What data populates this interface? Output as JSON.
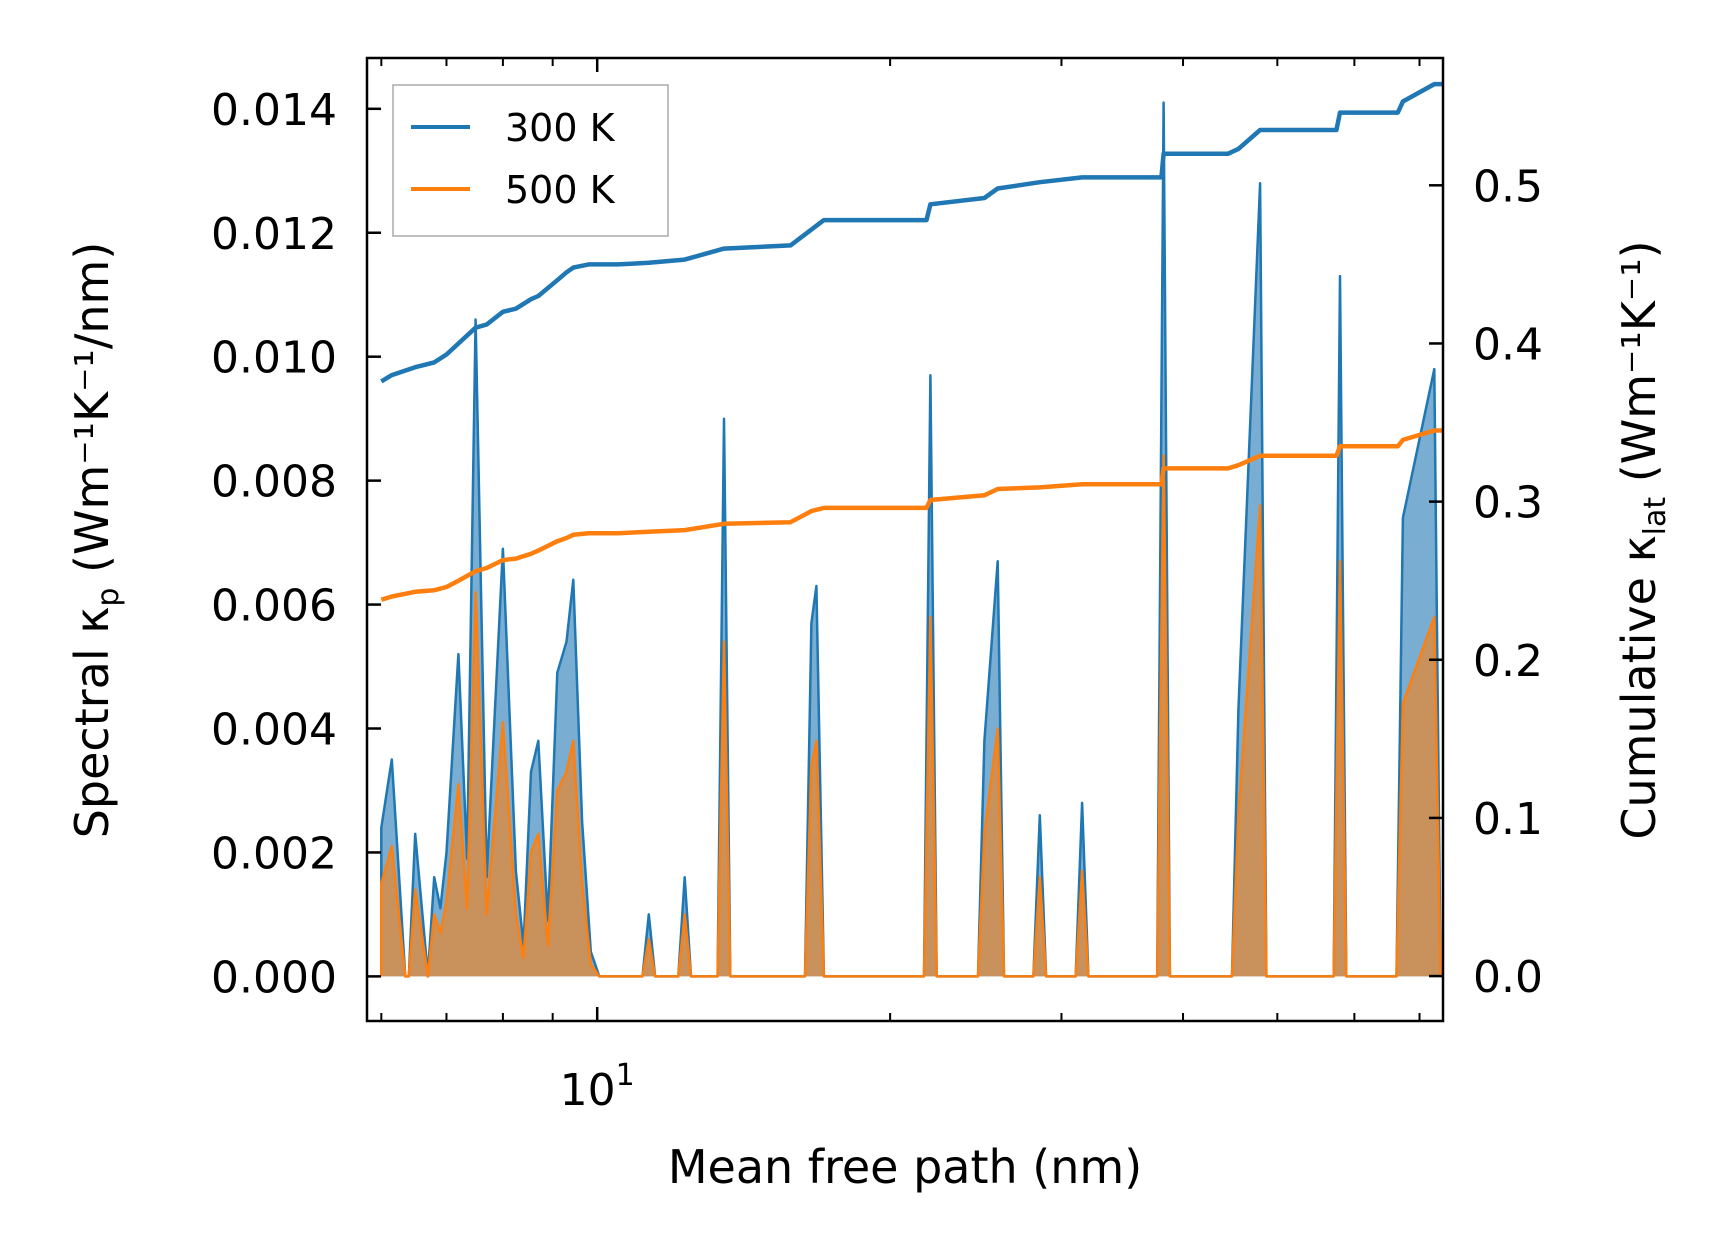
{
  "chart_data": {
    "type": "line",
    "xlabel": "Mean free path (nm)",
    "xscale": "log",
    "xlim": [
      5.8,
      74
    ],
    "x_tick_labels": [
      {
        "value": 10,
        "base": "10",
        "exp": "1"
      }
    ],
    "ylabel_left": {
      "main": "Spectral κ",
      "sub": "p",
      "units": "(Wm⁻¹K⁻¹/nm)"
    },
    "ylim_left": [
      -0.00072,
      0.01482
    ],
    "yticks_left": [
      "0.000",
      "0.002",
      "0.004",
      "0.006",
      "0.008",
      "0.010",
      "0.012",
      "0.014"
    ],
    "ylabel_right": {
      "main": "Cumulative κ",
      "sub": "lat",
      "units": "(Wm⁻¹K⁻¹)"
    },
    "ylim_right": [
      -0.0284,
      0.5805
    ],
    "yticks_right": [
      "0.0",
      "0.1",
      "0.2",
      "0.3",
      "0.4",
      "0.5"
    ],
    "legend": {
      "position": "top-left",
      "entries": [
        "300 K",
        "500 K"
      ]
    },
    "colors": {
      "300 K": "#1f77b4",
      "500 K": "#ff7f0e"
    },
    "spectral": {
      "300 K": [
        {
          "x": 6.0,
          "y": 0.0024
        },
        {
          "x": 6.15,
          "y": 0.0035
        },
        {
          "x": 6.35,
          "y": 0.0,
          "end": true
        },
        {
          "x": 6.5,
          "y": 0.0023
        },
        {
          "x": 6.7,
          "y": 0.0,
          "end": true
        },
        {
          "x": 6.8,
          "y": 0.0016
        },
        {
          "x": 6.9,
          "y": 0.0011
        },
        {
          "x": 7.0,
          "y": 0.002
        },
        {
          "x": 7.2,
          "y": 0.0052
        },
        {
          "x": 7.35,
          "y": 0.0019
        },
        {
          "x": 7.5,
          "y": 0.0106
        },
        {
          "x": 7.7,
          "y": 0.0016
        },
        {
          "x": 8.0,
          "y": 0.0069
        },
        {
          "x": 8.25,
          "y": 0.0017
        },
        {
          "x": 8.4,
          "y": 0.0005
        },
        {
          "x": 8.55,
          "y": 0.0033
        },
        {
          "x": 8.7,
          "y": 0.0038
        },
        {
          "x": 8.9,
          "y": 0.0009
        },
        {
          "x": 9.1,
          "y": 0.0049
        },
        {
          "x": 9.3,
          "y": 0.0054
        },
        {
          "x": 9.45,
          "y": 0.0064
        },
        {
          "x": 9.65,
          "y": 0.0025
        },
        {
          "x": 9.85,
          "y": 0.0004
        },
        {
          "x": 10.05,
          "y": 0.0,
          "end": true
        },
        {
          "x": 11.3,
          "y": 0.001
        },
        {
          "x": 12.3,
          "y": 0.0016
        },
        {
          "x": 13.5,
          "y": 0.009
        },
        {
          "x": 16.6,
          "y": 0.0057
        },
        {
          "x": 16.8,
          "y": 0.0063
        },
        {
          "x": 17.1,
          "y": 0.0,
          "end": true
        },
        {
          "x": 22.0,
          "y": 0.0097
        },
        {
          "x": 25.0,
          "y": 0.0038
        },
        {
          "x": 25.8,
          "y": 0.0067
        },
        {
          "x": 28.5,
          "y": 0.0026
        },
        {
          "x": 31.5,
          "y": 0.0028
        },
        {
          "x": 38.2,
          "y": 0.0141
        },
        {
          "x": 45.6,
          "y": 0.0043
        },
        {
          "x": 48.0,
          "y": 0.0128
        },
        {
          "x": 58.0,
          "y": 0.0113
        },
        {
          "x": 67.3,
          "y": 0.0074
        },
        {
          "x": 72.5,
          "y": 0.0098
        }
      ],
      "500 K": [
        {
          "x": 6.0,
          "y": 0.0015
        },
        {
          "x": 6.15,
          "y": 0.0021
        },
        {
          "x": 6.35,
          "y": 0.0,
          "end": true
        },
        {
          "x": 6.5,
          "y": 0.0014
        },
        {
          "x": 6.7,
          "y": 0.0,
          "end": true
        },
        {
          "x": 6.8,
          "y": 0.001
        },
        {
          "x": 6.9,
          "y": 0.0007
        },
        {
          "x": 7.0,
          "y": 0.0012
        },
        {
          "x": 7.2,
          "y": 0.0031
        },
        {
          "x": 7.35,
          "y": 0.0011
        },
        {
          "x": 7.5,
          "y": 0.0062
        },
        {
          "x": 7.7,
          "y": 0.001
        },
        {
          "x": 8.0,
          "y": 0.0041
        },
        {
          "x": 8.25,
          "y": 0.001
        },
        {
          "x": 8.4,
          "y": 0.0003
        },
        {
          "x": 8.55,
          "y": 0.002
        },
        {
          "x": 8.7,
          "y": 0.0023
        },
        {
          "x": 8.9,
          "y": 0.0005
        },
        {
          "x": 9.1,
          "y": 0.003
        },
        {
          "x": 9.3,
          "y": 0.0033
        },
        {
          "x": 9.45,
          "y": 0.0038
        },
        {
          "x": 9.65,
          "y": 0.0015
        },
        {
          "x": 9.85,
          "y": 0.0002
        },
        {
          "x": 10.05,
          "y": 0.0,
          "end": true
        },
        {
          "x": 11.3,
          "y": 0.0006
        },
        {
          "x": 12.3,
          "y": 0.001
        },
        {
          "x": 13.5,
          "y": 0.0054
        },
        {
          "x": 16.6,
          "y": 0.0034
        },
        {
          "x": 16.8,
          "y": 0.0038
        },
        {
          "x": 17.1,
          "y": 0.0,
          "end": true
        },
        {
          "x": 22.0,
          "y": 0.0058
        },
        {
          "x": 25.0,
          "y": 0.0023
        },
        {
          "x": 25.8,
          "y": 0.004
        },
        {
          "x": 28.5,
          "y": 0.0016
        },
        {
          "x": 31.5,
          "y": 0.0017
        },
        {
          "x": 38.2,
          "y": 0.0084
        },
        {
          "x": 45.6,
          "y": 0.0026
        },
        {
          "x": 48.0,
          "y": 0.0076
        },
        {
          "x": 58.0,
          "y": 0.0067
        },
        {
          "x": 67.3,
          "y": 0.0044
        },
        {
          "x": 72.5,
          "y": 0.0058
        }
      ]
    },
    "cumulative": {
      "300 K": [
        [
          6.0,
          0.376
        ],
        [
          6.15,
          0.38
        ],
        [
          6.5,
          0.385
        ],
        [
          6.8,
          0.388
        ],
        [
          7.0,
          0.393
        ],
        [
          7.2,
          0.4
        ],
        [
          7.5,
          0.41
        ],
        [
          7.7,
          0.412
        ],
        [
          8.0,
          0.42
        ],
        [
          8.25,
          0.422
        ],
        [
          8.55,
          0.428
        ],
        [
          8.7,
          0.43
        ],
        [
          9.1,
          0.44
        ],
        [
          9.3,
          0.445
        ],
        [
          9.45,
          0.448
        ],
        [
          9.8,
          0.45
        ],
        [
          10.5,
          0.45
        ],
        [
          11.3,
          0.451
        ],
        [
          12.3,
          0.453
        ],
        [
          13.5,
          0.46
        ],
        [
          15.8,
          0.462
        ],
        [
          16.6,
          0.472
        ],
        [
          17.1,
          0.478
        ],
        [
          21.8,
          0.478
        ],
        [
          22.0,
          0.488
        ],
        [
          25.0,
          0.492
        ],
        [
          25.8,
          0.498
        ],
        [
          28.5,
          0.502
        ],
        [
          31.5,
          0.505
        ],
        [
          38.0,
          0.505
        ],
        [
          38.2,
          0.52
        ],
        [
          44.5,
          0.52
        ],
        [
          45.6,
          0.523
        ],
        [
          48.0,
          0.535
        ],
        [
          57.5,
          0.535
        ],
        [
          58.0,
          0.546
        ],
        [
          66.5,
          0.546
        ],
        [
          67.3,
          0.553
        ],
        [
          72.5,
          0.564
        ],
        [
          74.0,
          0.564
        ]
      ],
      "500 K": [
        [
          6.0,
          0.238
        ],
        [
          6.15,
          0.24
        ],
        [
          6.5,
          0.243
        ],
        [
          6.8,
          0.244
        ],
        [
          7.0,
          0.246
        ],
        [
          7.2,
          0.25
        ],
        [
          7.5,
          0.256
        ],
        [
          7.7,
          0.258
        ],
        [
          8.0,
          0.263
        ],
        [
          8.25,
          0.264
        ],
        [
          8.55,
          0.267
        ],
        [
          8.7,
          0.269
        ],
        [
          9.1,
          0.275
        ],
        [
          9.3,
          0.277
        ],
        [
          9.45,
          0.279
        ],
        [
          9.8,
          0.28
        ],
        [
          10.5,
          0.28
        ],
        [
          11.3,
          0.281
        ],
        [
          12.3,
          0.282
        ],
        [
          13.5,
          0.286
        ],
        [
          15.8,
          0.287
        ],
        [
          16.6,
          0.294
        ],
        [
          17.1,
          0.296
        ],
        [
          21.8,
          0.296
        ],
        [
          22.0,
          0.301
        ],
        [
          25.0,
          0.304
        ],
        [
          25.8,
          0.308
        ],
        [
          28.5,
          0.309
        ],
        [
          31.5,
          0.311
        ],
        [
          38.0,
          0.311
        ],
        [
          38.2,
          0.321
        ],
        [
          44.5,
          0.321
        ],
        [
          45.6,
          0.323
        ],
        [
          48.0,
          0.329
        ],
        [
          57.5,
          0.329
        ],
        [
          58.0,
          0.335
        ],
        [
          66.5,
          0.335
        ],
        [
          67.3,
          0.339
        ],
        [
          72.5,
          0.345
        ],
        [
          74.0,
          0.345
        ]
      ]
    }
  }
}
